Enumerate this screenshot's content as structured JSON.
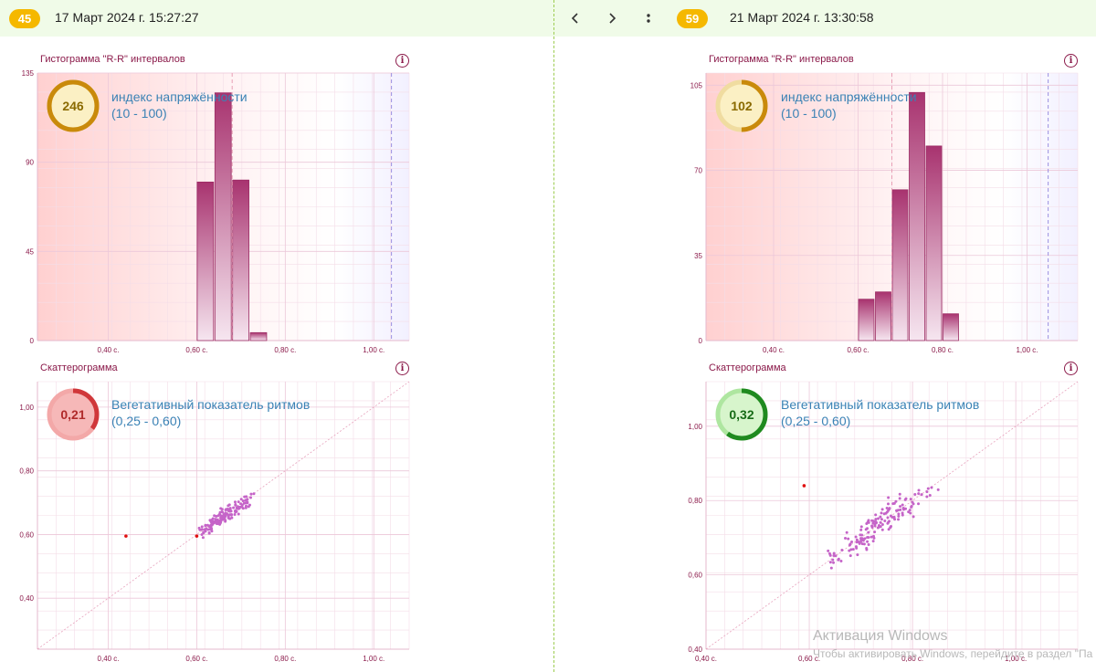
{
  "left": {
    "badge": "45",
    "date": "17 Март 2024 г. 15:27:27",
    "histogram": {
      "title": "Гистограмма \"R-R\" интервалов",
      "gauge_value": "246",
      "gauge_fraction": 1.0,
      "metric_name": "индекс напряжённости",
      "metric_range": "(10 - 100)"
    },
    "scatter": {
      "title": "Скаттерограмма",
      "gauge_value": "0,21",
      "gauge_fraction": 0.35,
      "metric_name": "Вегетативный показатель ритмов",
      "metric_range": "(0,25 - 0,60)"
    }
  },
  "right": {
    "badge": "59",
    "date": "21 Март 2024 г. 13:30:58",
    "histogram": {
      "title": "Гистограмма \"R-R\" интервалов",
      "gauge_value": "102",
      "gauge_fraction": 0.5,
      "metric_name": "индекс напряжённости",
      "metric_range": "(10 - 100)"
    },
    "scatter": {
      "title": "Скаттерограмма",
      "gauge_value": "0,32",
      "gauge_fraction": 0.6,
      "metric_name": "Вегетативный показатель ритмов",
      "metric_range": "(0,25 - 0,60)"
    }
  },
  "nav": {
    "prev_icon": "chevron-left-icon",
    "next_icon": "chevron-right-icon",
    "menu_icon": "more-vertical-icon"
  },
  "watermark": {
    "line1": "Активация Windows",
    "line2": "Чтобы активировать Windows, перейдите в раздел \"Па"
  },
  "colors": {
    "accent_badge": "#f5b800",
    "bar": "#b0417e",
    "gauge_orange": "#c98a0b",
    "gauge_red": "#d0373a",
    "gauge_green": "#1f8a1f",
    "point": "#c564c8"
  },
  "chart_data": [
    {
      "panel": "left-histogram",
      "type": "bar",
      "x_tick_labels": [
        "0,40 с.",
        "0,60 с.",
        "0,80 с.",
        "1,00 с."
      ],
      "x_ticks": [
        0.4,
        0.6,
        0.8,
        1.0
      ],
      "y_tick_labels": [
        "0",
        "45",
        "90",
        "135"
      ],
      "y_ticks": [
        0,
        45,
        90,
        135
      ],
      "xlim": [
        0.24,
        1.08
      ],
      "ylim": [
        0,
        135
      ],
      "bins_start": [
        0.6,
        0.64,
        0.68,
        0.72
      ],
      "bin_width": 0.04,
      "values": [
        80,
        125,
        81,
        4
      ],
      "threshold_lines": [
        0.68,
        1.04
      ],
      "grid": true
    },
    {
      "panel": "right-histogram",
      "type": "bar",
      "x_tick_labels": [
        "0,40 с.",
        "0,60 с.",
        "0,80 с.",
        "1,00 с."
      ],
      "x_ticks": [
        0.4,
        0.6,
        0.8,
        1.0
      ],
      "y_tick_labels": [
        "0",
        "35",
        "70",
        "105"
      ],
      "y_ticks": [
        0,
        35,
        70,
        105
      ],
      "xlim": [
        0.24,
        1.12
      ],
      "ylim": [
        0,
        110
      ],
      "bins_start": [
        0.6,
        0.64,
        0.68,
        0.72,
        0.76,
        0.8
      ],
      "bin_width": 0.04,
      "values": [
        17,
        20,
        62,
        102,
        80,
        11
      ],
      "threshold_lines": [
        0.68,
        1.05
      ],
      "grid": true
    },
    {
      "panel": "left-scatter",
      "type": "scatter",
      "x_tick_labels": [
        "0,40 с.",
        "0,60 с.",
        "0,80 с.",
        "1,00 с."
      ],
      "x_ticks": [
        0.4,
        0.6,
        0.8,
        1.0
      ],
      "y_tick_labels": [
        "0,40",
        "0,60",
        "0,80",
        "1,00"
      ],
      "y_ticks": [
        0.4,
        0.6,
        0.8,
        1.0
      ],
      "xlim": [
        0.24,
        1.08
      ],
      "ylim": [
        0.24,
        1.08
      ],
      "diagonal": true,
      "outliers": [
        [
          0.44,
          0.595
        ],
        [
          0.6,
          0.595
        ]
      ],
      "cluster": {
        "x_range": [
          0.61,
          0.73
        ],
        "center": [
          0.67,
          0.665
        ],
        "count": 150
      },
      "grid": true
    },
    {
      "panel": "right-scatter",
      "type": "scatter",
      "x_tick_labels": [
        "0,40 с.",
        "0,60 с.",
        "0,80 с.",
        "1,00 с."
      ],
      "x_ticks": [
        0.4,
        0.6,
        0.8,
        1.0
      ],
      "y_tick_labels": [
        "0,40",
        "0,60",
        "0,80",
        "1,00"
      ],
      "y_ticks": [
        0.4,
        0.6,
        0.8,
        1.0
      ],
      "xlim": [
        0.4,
        1.12
      ],
      "ylim": [
        0.4,
        1.12
      ],
      "diagonal": true,
      "outliers": [
        [
          0.59,
          0.84
        ]
      ],
      "cluster": {
        "x_range": [
          0.62,
          0.83
        ],
        "center": [
          0.74,
          0.74
        ],
        "count": 150
      },
      "grid": true
    }
  ]
}
